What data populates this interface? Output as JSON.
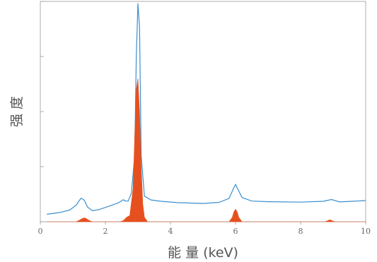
{
  "chart_data": {
    "type": "area",
    "xlabel": "能 量 (keV)",
    "ylabel": "强 度",
    "xlim": [
      0,
      10
    ],
    "ylim": [
      0,
      100
    ],
    "x_ticks": [
      0,
      2,
      4,
      6,
      8,
      10
    ],
    "x_tick_labels": [
      "0",
      "2",
      "4",
      "6",
      "8",
      "10"
    ],
    "y_ticks": [
      0,
      25,
      50,
      75,
      100
    ],
    "grid": false,
    "series": [
      {
        "style": "line",
        "color": "#3a8fd0",
        "x": [
          0.2,
          0.6,
          0.9,
          1.1,
          1.25,
          1.35,
          1.45,
          1.6,
          1.8,
          2.1,
          2.4,
          2.55,
          2.62,
          2.7,
          2.8,
          2.9,
          2.95,
          3.0,
          3.05,
          3.1,
          3.2,
          3.4,
          3.7,
          4.2,
          5.0,
          5.5,
          5.8,
          5.95,
          6.0,
          6.05,
          6.2,
          6.5,
          7.0,
          8.0,
          8.7,
          8.95,
          9.2,
          9.6,
          10.0
        ],
        "y": [
          3.4,
          4.2,
          5.3,
          7.5,
          10.7,
          9.8,
          6.7,
          5.0,
          5.5,
          7.0,
          8.6,
          10.0,
          9.4,
          9.4,
          13.0,
          30.0,
          75.0,
          99.0,
          88.0,
          30.0,
          11.6,
          9.9,
          9.3,
          8.7,
          8.3,
          8.8,
          10.6,
          15.5,
          17.0,
          15.4,
          11.0,
          9.4,
          9.1,
          8.9,
          9.3,
          10.1,
          9.0,
          9.3,
          9.6
        ]
      },
      {
        "style": "area",
        "color": "#e6501e",
        "x": [
          0.2,
          1.1,
          1.2,
          1.3,
          1.35,
          1.4,
          1.5,
          1.6,
          2.45,
          2.55,
          2.65,
          2.75,
          2.85,
          2.9,
          2.95,
          3.0,
          3.05,
          3.1,
          3.15,
          3.2,
          3.3,
          5.8,
          5.9,
          5.95,
          6.0,
          6.05,
          6.1,
          6.2,
          8.75,
          8.85,
          8.9,
          8.95,
          9.05,
          10.0
        ],
        "y": [
          0,
          0,
          0.7,
          1.5,
          1.8,
          1.5,
          0.6,
          0,
          0,
          0.5,
          2.0,
          2.8,
          15.0,
          38.0,
          60.0,
          65.0,
          50.0,
          25.0,
          8.0,
          2.0,
          0,
          0,
          2.0,
          4.5,
          5.7,
          4.5,
          2.0,
          0,
          0,
          0.6,
          0.9,
          0.6,
          0,
          0
        ]
      }
    ]
  }
}
